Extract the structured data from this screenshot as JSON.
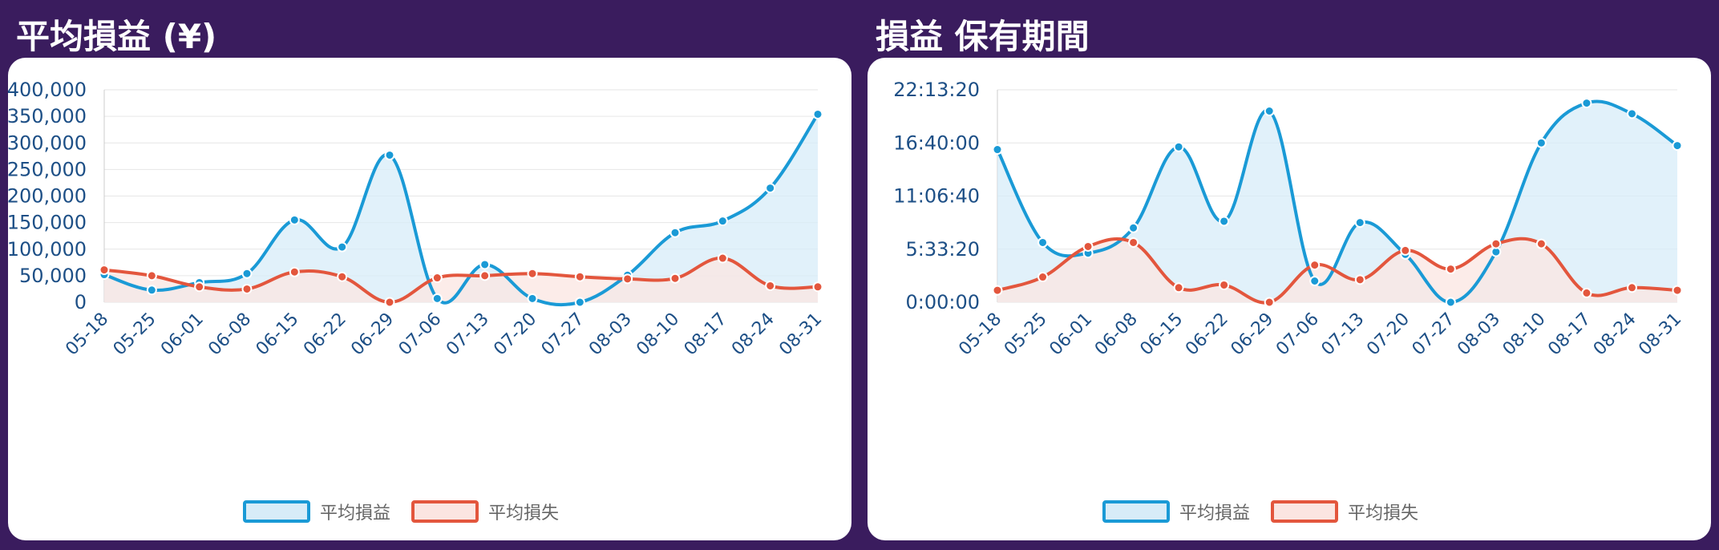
{
  "colors": {
    "background": "#3a1c5e",
    "profit": "#1a9ad6",
    "profitFill": "#d7ecf8",
    "loss": "#e3563d",
    "lossFill": "#fbe5e1"
  },
  "chart_data": [
    {
      "type": "area",
      "title": "平均損益 (¥)",
      "categories": [
        "05-18",
        "05-25",
        "06-01",
        "06-08",
        "06-15",
        "06-22",
        "06-29",
        "07-06",
        "07-13",
        "07-20",
        "07-27",
        "08-03",
        "08-10",
        "08-17",
        "08-24",
        "08-31"
      ],
      "ylim": [
        0,
        400000
      ],
      "yticks": [
        0,
        50000,
        100000,
        150000,
        200000,
        250000,
        300000,
        350000,
        400000
      ],
      "ytick_labels": [
        "0",
        "50,000",
        "100,000",
        "150,000",
        "200,000",
        "250,000",
        "300,000",
        "350,000",
        "400,000"
      ],
      "grid": true,
      "legend": "bottom",
      "series": [
        {
          "name": "平均損益",
          "values": [
            52000,
            23000,
            37000,
            54000,
            155000,
            104000,
            277000,
            7000,
            71000,
            7000,
            0,
            51000,
            131000,
            153000,
            215000,
            354000
          ]
        },
        {
          "name": "平均損失",
          "values": [
            61000,
            50000,
            29000,
            25000,
            57000,
            48000,
            0,
            46000,
            50000,
            54000,
            48000,
            44000,
            45000,
            83000,
            31000,
            29000
          ]
        }
      ]
    },
    {
      "type": "area",
      "title": "損益 保有期間",
      "categories": [
        "05-18",
        "05-25",
        "06-01",
        "06-08",
        "06-15",
        "06-22",
        "06-29",
        "07-06",
        "07-13",
        "07-20",
        "07-27",
        "08-03",
        "08-10",
        "08-17",
        "08-24",
        "08-31"
      ],
      "ylim": [
        0,
        80000
      ],
      "yticks": [
        0,
        20000,
        40000,
        60000,
        80000
      ],
      "ytick_labels": [
        "0:00:00",
        "5:33:20",
        "11:06:40",
        "16:40:00",
        "22:13:20"
      ],
      "grid": true,
      "legend": "bottom",
      "series": [
        {
          "name": "平均損益",
          "values": [
            57500,
            22500,
            18500,
            28000,
            58500,
            30500,
            72000,
            8000,
            30000,
            18000,
            0,
            19000,
            60000,
            75000,
            71000,
            59000
          ]
        },
        {
          "name": "平均損失",
          "values": [
            4500,
            9500,
            21000,
            22500,
            5500,
            6500,
            0,
            14000,
            8500,
            19500,
            12500,
            22000,
            22000,
            3500,
            5500,
            4500
          ]
        }
      ]
    }
  ]
}
